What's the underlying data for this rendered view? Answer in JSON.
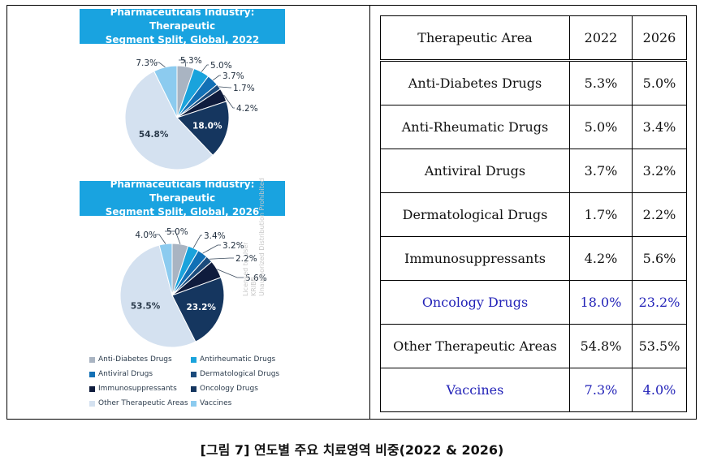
{
  "chart_data": [
    {
      "type": "pie",
      "title": "Pharmaceuticals Industry: Therapeutic Segment Split, Global, 2022",
      "title_lines": [
        "Pharmaceuticals Industry: Therapeutic",
        "Segment Split, Global, 2022"
      ],
      "categories": [
        "Anti-Diabetes Drugs",
        "Antirheumatic Drugs",
        "Antiviral Drugs",
        "Dermatological Drugs",
        "Immunosuppressants",
        "Oncology Drugs",
        "Other Therapeutic Areas",
        "Vaccines"
      ],
      "values": [
        5.3,
        5.0,
        3.7,
        1.7,
        4.2,
        18.0,
        54.8,
        7.3
      ],
      "labels": [
        "5.3%",
        "5.0%",
        "3.7%",
        "1.7%",
        "4.2%",
        "18.0%",
        "54.8%",
        "7.3%"
      ]
    },
    {
      "type": "pie",
      "title": "Pharmaceuticals Industry: Therapeutic Segment Split, Global, 2026",
      "title_lines": [
        "Pharmaceuticals Industry: Therapeutic",
        "Segment Split, Global, 2026"
      ],
      "categories": [
        "Anti-Diabetes Drugs",
        "Antirheumatic Drugs",
        "Antiviral Drugs",
        "Dermatological Drugs",
        "Immunosuppressants",
        "Oncology Drugs",
        "Other Therapeutic Areas",
        "Vaccines"
      ],
      "values": [
        5.0,
        3.4,
        3.2,
        2.2,
        5.6,
        23.2,
        53.5,
        4.0
      ],
      "labels": [
        "5.0%",
        "3.4%",
        "3.2%",
        "2.2%",
        "5.6%",
        "23.2%",
        "53.5%",
        "4.0%"
      ]
    },
    {
      "type": "table",
      "columns": [
        "Therapeutic Area",
        "2022",
        "2026"
      ],
      "rows": [
        {
          "area": "Anti-Diabetes Drugs",
          "y2022": "5.3%",
          "y2026": "5.0%",
          "highlight": false
        },
        {
          "area": "Anti-Rheumatic Drugs",
          "y2022": "5.0%",
          "y2026": "3.4%",
          "highlight": false
        },
        {
          "area": "Antiviral Drugs",
          "y2022": "3.7%",
          "y2026": "3.2%",
          "highlight": false
        },
        {
          "area": "Dermatological Drugs",
          "y2022": "1.7%",
          "y2026": "2.2%",
          "highlight": false
        },
        {
          "area": "Immunosuppressants",
          "y2022": "4.2%",
          "y2026": "5.6%",
          "highlight": false
        },
        {
          "area": "Oncology Drugs",
          "y2022": "18.0%",
          "y2026": "23.2%",
          "highlight": true
        },
        {
          "area": "Other Therapeutic Areas",
          "y2022": "54.8%",
          "y2026": "53.5%",
          "highlight": false
        },
        {
          "area": "Vaccines",
          "y2022": "7.3%",
          "y2026": "4.0%",
          "highlight": true
        }
      ]
    }
  ],
  "legend": [
    {
      "label": "Anti-Diabetes Drugs",
      "color": "#a9b4c2"
    },
    {
      "label": "Antirheumatic Drugs",
      "color": "#1aa3dc"
    },
    {
      "label": "Antiviral Drugs",
      "color": "#1270b5"
    },
    {
      "label": "Dermatological Drugs",
      "color": "#1b4b7c"
    },
    {
      "label": "Immunosuppressants",
      "color": "#0f1c3d"
    },
    {
      "label": "Oncology Drugs",
      "color": "#15365f"
    },
    {
      "label": "Other Therapeutic Areas",
      "color": "#d4e1f0"
    },
    {
      "label": "Vaccines",
      "color": "#8ccbef"
    }
  ],
  "colors": {
    "banner": "#19a3e0",
    "highlight_text": "#2323b8"
  },
  "watermark_lines": [
    "Licensed to User",
    "KRIBB",
    "Unauthorized Distribution Prohibited"
  ],
  "caption": "[그림 7] 연도별 주요 치료영역 비중(2022 & 2026)"
}
